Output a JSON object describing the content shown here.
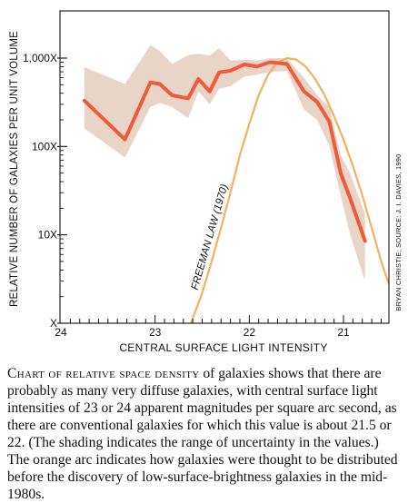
{
  "chart_data": {
    "type": "line",
    "ylabel": "RELATIVE NUMBER OF GALAXIES PER UNIT VOLUME",
    "xlabel": "CENTRAL SURFACE LIGHT INTENSITY",
    "x_ticks": [
      {
        "value": 24,
        "label": "24"
      },
      {
        "value": 23,
        "label": "23"
      },
      {
        "value": 22,
        "label": "22"
      },
      {
        "value": 21,
        "label": "21"
      }
    ],
    "y_ticks": [
      {
        "value": 1000,
        "label": "1,000X"
      },
      {
        "value": 100,
        "label": "100X"
      },
      {
        "value": 10,
        "label": "10X"
      },
      {
        "value": 1,
        "label": "X"
      }
    ],
    "xlim": [
      24,
      20.5
    ],
    "ylim": [
      1,
      2500
    ],
    "y_scale": "log",
    "x_reversed": true,
    "grid": false,
    "series": [
      {
        "name": "",
        "color": "#ef5a3c",
        "x": [
          23.75,
          23.32,
          23.05,
          22.95,
          22.82,
          22.65,
          22.54,
          22.42,
          22.32,
          22.2,
          22.05,
          21.92,
          21.78,
          21.6,
          21.42,
          21.28,
          21.15,
          21.03,
          20.93,
          20.77
        ],
        "y": [
          330,
          120,
          530,
          510,
          380,
          350,
          580,
          420,
          690,
          720,
          850,
          800,
          900,
          860,
          420,
          320,
          190,
          50,
          26,
          8.5
        ]
      }
    ],
    "uncertainty_band": {
      "color": "#e9d5c8",
      "x": [
        23.75,
        23.32,
        23.05,
        22.95,
        22.82,
        22.65,
        22.54,
        22.42,
        22.32,
        22.2,
        22.05,
        21.92,
        21.78,
        21.6,
        21.42,
        21.28,
        21.15,
        21.03,
        20.93,
        20.77
      ],
      "y_low": [
        160,
        75,
        280,
        310,
        280,
        210,
        420,
        300,
        450,
        480,
        620,
        650,
        700,
        720,
        260,
        200,
        100,
        28,
        10,
        3.0
      ],
      "y_high": [
        790,
        510,
        1400,
        1200,
        860,
        1080,
        1120,
        1070,
        1300,
        940,
        960,
        940,
        1000,
        1000,
        600,
        380,
        280,
        80,
        50,
        17
      ]
    },
    "reference_curve": {
      "label": "FREEMAN LAW (1970)",
      "color": "#f2b15e",
      "x": [
        22.62,
        22.5,
        22.4,
        22.3,
        22.2,
        22.1,
        22.0,
        21.9,
        21.8,
        21.7,
        21.6,
        21.5,
        21.4,
        21.3,
        21.2,
        21.1,
        21.0,
        20.9,
        20.8,
        20.7,
        20.6,
        20.52
      ],
      "y": [
        1.0,
        2.2,
        5.0,
        12,
        30,
        80,
        180,
        380,
        650,
        900,
        1000,
        960,
        800,
        580,
        380,
        220,
        120,
        60,
        28,
        12,
        5,
        2.8
      ]
    },
    "credit": "BRYAN CHRISTIE; SOURCE: J. I. DAVIES, 1990"
  },
  "caption": {
    "lead": "Chart of relative space density",
    "text": " of galaxies shows that there are probably as many very diffuse galaxies, with central surface light intensities of 23 or 24 apparent magnitudes per square arc second, as there are conventional galaxies for which this value is about 21.5 or 22. (The shading indicates the range of uncertainty in the values.) The orange arc indicates how galaxies were thought to be distributed before the discovery of low-surface-brightness galaxies in the mid-1980s."
  }
}
